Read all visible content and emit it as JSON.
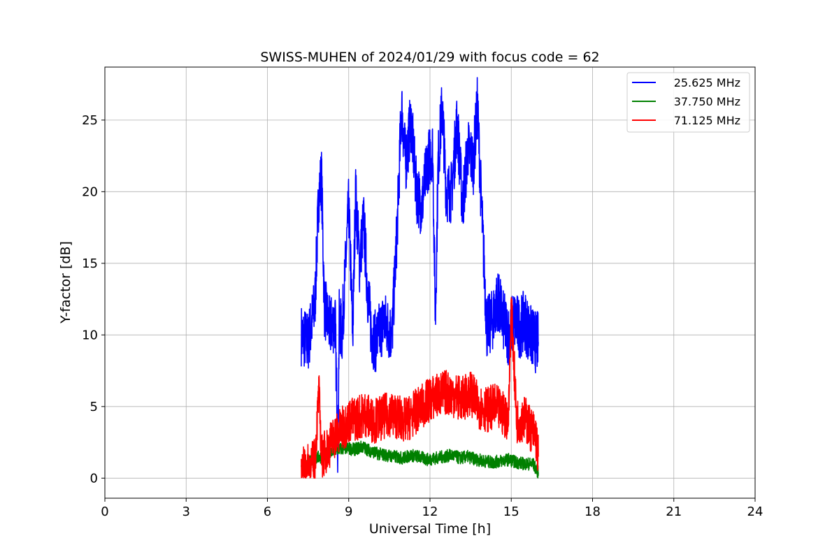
{
  "chart_data": {
    "type": "line",
    "title": "SWISS-MUHEN of 2024/01/29 with focus code = 62",
    "xlabel": "Universal Time [h]",
    "ylabel": "Y-factor [dB]",
    "xlim": [
      0,
      24
    ],
    "ylim": [
      -1.4,
      28.7
    ],
    "xticks": [
      0,
      3,
      6,
      9,
      12,
      15,
      18,
      21,
      24
    ],
    "yticks": [
      0,
      5,
      10,
      15,
      20,
      25
    ],
    "grid": true,
    "legend_position": "top-right",
    "series": [
      {
        "name": "25.625 MHz",
        "color": "#0000ff",
        "x": [
          7.25,
          7.5,
          7.75,
          7.9,
          8.0,
          8.1,
          8.3,
          8.5,
          8.6,
          8.65,
          8.75,
          9.0,
          9.15,
          9.25,
          9.4,
          9.55,
          9.7,
          9.85,
          10.0,
          10.3,
          10.6,
          10.8,
          10.95,
          11.1,
          11.3,
          11.5,
          11.7,
          11.9,
          12.1,
          12.2,
          12.3,
          12.45,
          12.6,
          12.8,
          13.0,
          13.2,
          13.4,
          13.6,
          13.75,
          13.9,
          14.1,
          14.3,
          14.5,
          14.7,
          14.9,
          15.1,
          15.3,
          15.5,
          15.7,
          15.9,
          16.0
        ],
        "y": [
          10,
          9.5,
          12,
          20,
          21,
          12,
          10.5,
          11,
          2,
          11,
          10,
          19,
          10,
          20,
          15,
          18,
          13,
          10,
          9.5,
          11,
          10,
          18,
          26,
          22,
          25,
          20,
          19,
          22,
          23,
          11,
          22,
          26,
          20,
          20,
          25,
          19,
          23,
          22,
          26,
          19,
          10.5,
          11,
          12.5,
          11,
          10,
          11,
          10.5,
          11,
          10,
          9.5,
          9.5
        ]
      },
      {
        "name": "37.750 MHz",
        "color": "#008000",
        "x": [
          7.25,
          7.5,
          7.75,
          8.0,
          8.3,
          8.6,
          8.9,
          9.2,
          9.5,
          9.8,
          10.1,
          10.4,
          10.7,
          11.0,
          11.3,
          11.6,
          11.9,
          12.2,
          12.5,
          12.8,
          13.1,
          13.4,
          13.7,
          14.0,
          14.3,
          14.6,
          14.9,
          15.2,
          15.5,
          15.8,
          16.0
        ],
        "y": [
          0.8,
          1.2,
          1.4,
          1.5,
          1.8,
          2.0,
          2.1,
          2.0,
          2.2,
          1.9,
          1.7,
          1.6,
          1.5,
          1.4,
          1.6,
          1.5,
          1.3,
          1.4,
          1.5,
          1.6,
          1.4,
          1.5,
          1.3,
          1.2,
          1.1,
          1.2,
          1.3,
          1.1,
          1.0,
          1.0,
          0.4
        ]
      },
      {
        "name": "71.125 MHz",
        "color": "#ff0000",
        "x": [
          7.25,
          7.5,
          7.75,
          7.9,
          8.0,
          8.2,
          8.5,
          8.8,
          9.0,
          9.3,
          9.6,
          9.9,
          10.2,
          10.5,
          10.8,
          11.1,
          11.4,
          11.7,
          12.0,
          12.3,
          12.6,
          12.9,
          13.2,
          13.5,
          13.8,
          14.1,
          14.4,
          14.7,
          14.9,
          15.0,
          15.2,
          15.5,
          15.7,
          15.9,
          16.0
        ],
        "y": [
          0.5,
          0.8,
          1.2,
          6,
          1.5,
          2.0,
          3.0,
          3.5,
          4.0,
          4.2,
          4.5,
          4.0,
          4.2,
          4.5,
          4.3,
          4.0,
          4.5,
          5.0,
          5.5,
          5.8,
          6.0,
          5.8,
          5.5,
          6.0,
          5.0,
          4.8,
          5.0,
          4.5,
          4.2,
          12,
          4.0,
          4.2,
          3.5,
          3.0,
          1.5
        ]
      }
    ]
  }
}
